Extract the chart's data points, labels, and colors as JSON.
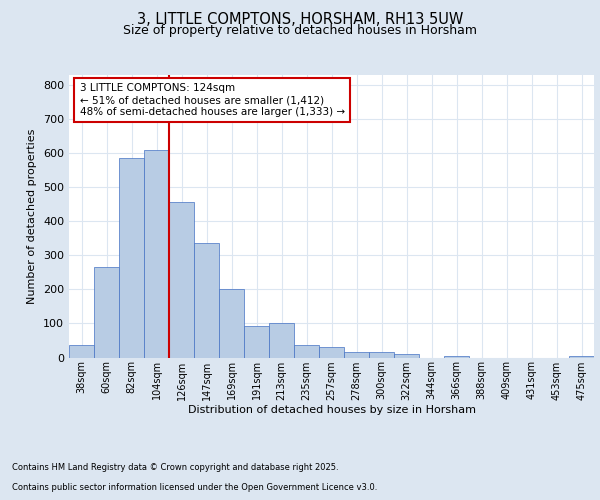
{
  "title": "3, LITTLE COMPTONS, HORSHAM, RH13 5UW",
  "subtitle": "Size of property relative to detached houses in Horsham",
  "categories": [
    "38sqm",
    "60sqm",
    "82sqm",
    "104sqm",
    "126sqm",
    "147sqm",
    "169sqm",
    "191sqm",
    "213sqm",
    "235sqm",
    "257sqm",
    "278sqm",
    "300sqm",
    "322sqm",
    "344sqm",
    "366sqm",
    "388sqm",
    "409sqm",
    "431sqm",
    "453sqm",
    "475sqm"
  ],
  "values": [
    38,
    267,
    585,
    610,
    457,
    337,
    200,
    93,
    101,
    38,
    31,
    16,
    15,
    10,
    0,
    5,
    0,
    0,
    0,
    0,
    5
  ],
  "bar_color": "#b8cce4",
  "bar_edge_color": "#4472c4",
  "grid_color": "#dce6f1",
  "background_color": "#dce6f1",
  "plot_background": "#ffffff",
  "vline_color": "#cc0000",
  "vline_pos": 3.5,
  "annotation_text": "3 LITTLE COMPTONS: 124sqm\n← 51% of detached houses are smaller (1,412)\n48% of semi-detached houses are larger (1,333) →",
  "annotation_box_color": "#cc0000",
  "xlabel": "Distribution of detached houses by size in Horsham",
  "ylabel": "Number of detached properties",
  "ylim": [
    0,
    830
  ],
  "yticks": [
    0,
    100,
    200,
    300,
    400,
    500,
    600,
    700,
    800
  ],
  "footer1": "Contains HM Land Registry data © Crown copyright and database right 2025.",
  "footer2": "Contains public sector information licensed under the Open Government Licence v3.0."
}
